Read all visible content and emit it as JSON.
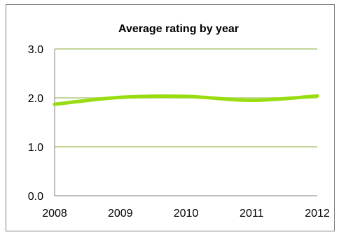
{
  "chart_data": {
    "type": "line",
    "title": "Average rating by year",
    "xlabel": "",
    "ylabel": "",
    "categories": [
      "2008",
      "2009",
      "2010",
      "2011",
      "2012"
    ],
    "series": [
      {
        "values": [
          1.87,
          2.01,
          2.03,
          1.95,
          2.04
        ]
      }
    ],
    "ylim": [
      0,
      3
    ],
    "yticks": [
      "0.0",
      "1.0",
      "2.0",
      "3.0"
    ],
    "grid": true,
    "legend": "none",
    "colors": {
      "line": "#99dd11",
      "grid": "#c3d69b",
      "axis": "#808080"
    }
  }
}
